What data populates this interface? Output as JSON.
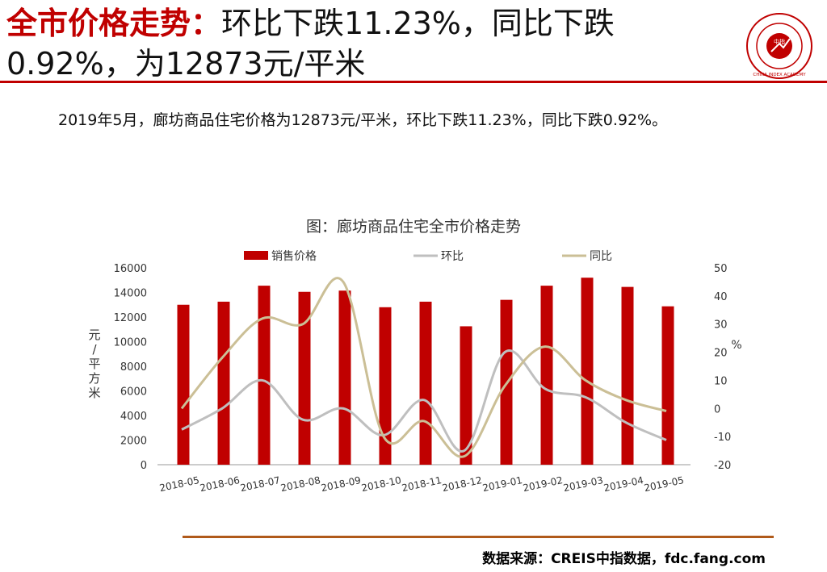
{
  "header": {
    "title_prefix": "全市价格走势：",
    "title_rest": "环比下跌11.23%，同比下跌0.92%，为12873元/平米",
    "logo": {
      "icon": "china-index-academy-seal-icon",
      "text": "CHINA INDEX ACADEMY",
      "center": "中指"
    }
  },
  "summary": "2019年5月，廊坊商品住宅价格为12873元/平米，环比下跌11.23%，同比下跌0.92%。",
  "colors": {
    "accent": "#c00000",
    "bar": "#c00000",
    "mom": "#bfbfbf",
    "yoy": "#cbbf96",
    "rule": "#b05a1a"
  },
  "chart_data": {
    "type": "bar",
    "title": "图：廊坊商品住宅全市价格走势",
    "categories": [
      "2018-05",
      "2018-06",
      "2018-07",
      "2018-08",
      "2018-09",
      "2018-10",
      "2018-11",
      "2018-12",
      "2019-01",
      "2019-02",
      "2019-03",
      "2019-04",
      "2019-05"
    ],
    "series": [
      {
        "name": "销售价格",
        "type": "bar",
        "axis": "left",
        "values": [
          13000,
          13250,
          14550,
          14050,
          14150,
          12800,
          13250,
          11250,
          13400,
          14550,
          15200,
          14450,
          12873
        ]
      },
      {
        "name": "环比",
        "type": "line",
        "axis": "right",
        "values": [
          -7.5,
          0,
          10,
          -4,
          0,
          -9.5,
          3,
          -15,
          20,
          7,
          4,
          -5,
          -11.23
        ]
      },
      {
        "name": "同比",
        "type": "line",
        "axis": "right",
        "values": [
          0,
          18,
          32,
          30,
          45,
          -10,
          -4.5,
          -17,
          8,
          22,
          10,
          3,
          -0.92
        ]
      }
    ],
    "ylabel": "元/平方米",
    "ylabel_right": "%",
    "ylim": [
      0,
      16000
    ],
    "yticks": [
      0,
      2000,
      4000,
      6000,
      8000,
      10000,
      12000,
      14000,
      16000
    ],
    "ylim_right": [
      -20,
      50
    ],
    "yticks_right": [
      -20,
      -10,
      0,
      10,
      20,
      30,
      40,
      50
    ],
    "legend": "top",
    "grid": false
  },
  "footer": {
    "source": "数据来源：CREIS中指数据，fdc.fang.com"
  }
}
